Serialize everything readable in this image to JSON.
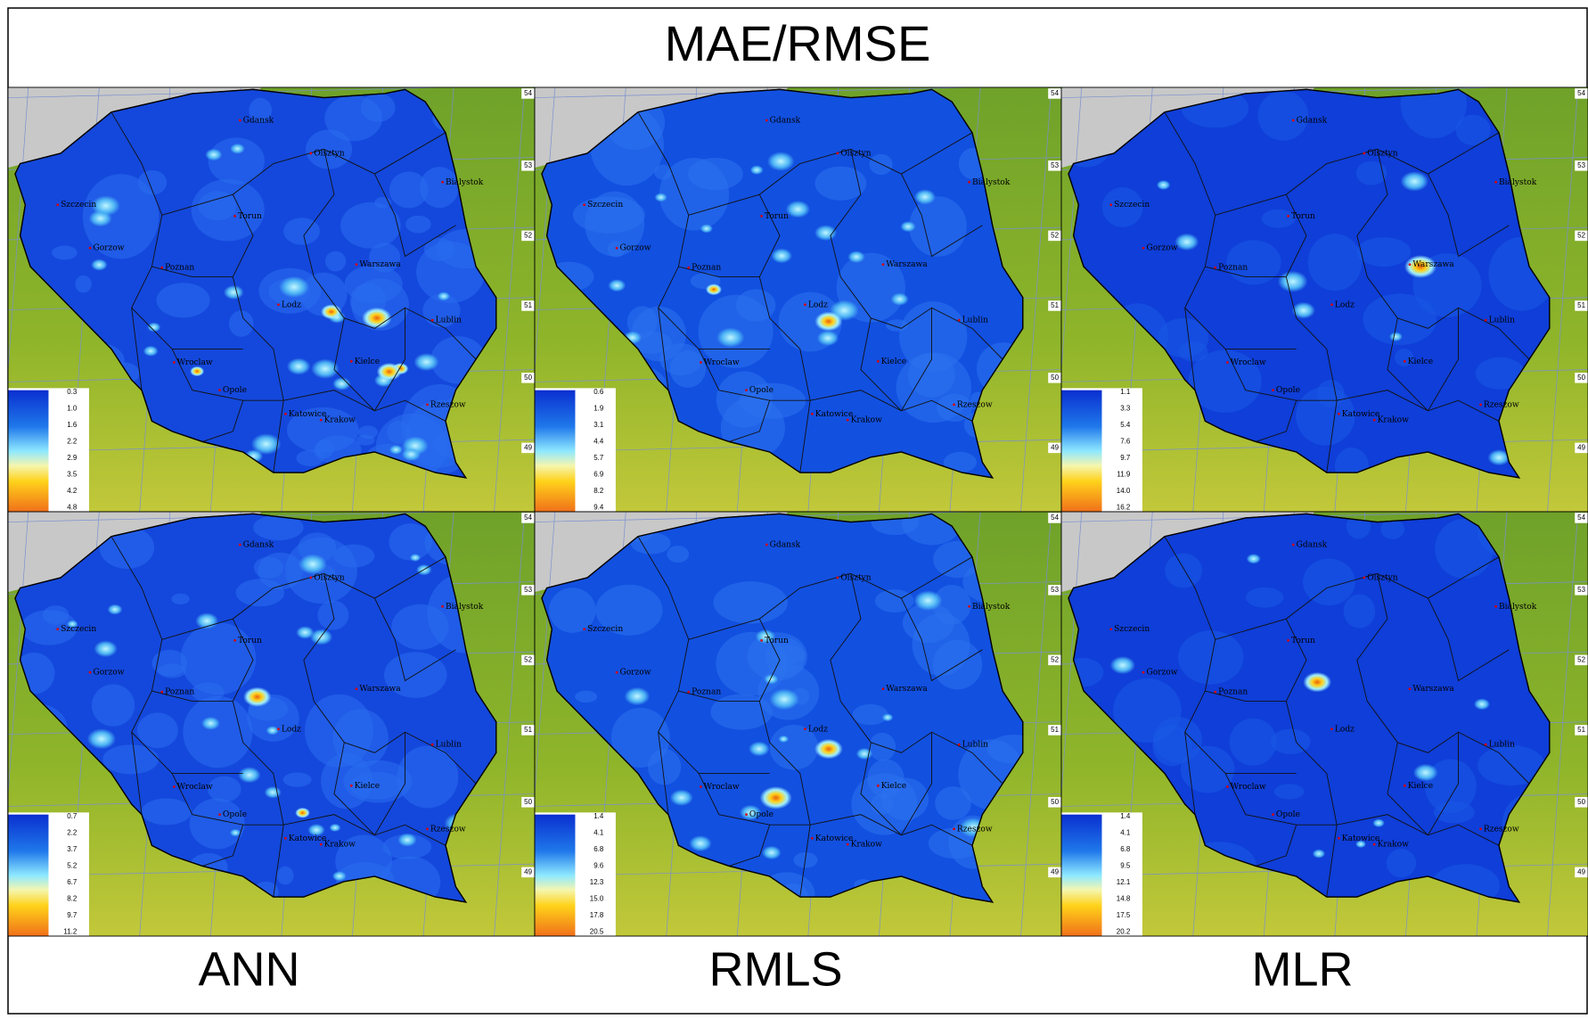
{
  "title": "MAE/RMSE",
  "columns": [
    {
      "label": "ANN"
    },
    {
      "label": "RMLS"
    },
    {
      "label": "MLR"
    }
  ],
  "panels": [
    [
      {
        "legend": [
          "0.3",
          "1.0",
          "1.6",
          "2.2",
          "2.9",
          "3.5",
          "4.2",
          "4.8"
        ]
      },
      {
        "legend": [
          "0.6",
          "1.9",
          "3.1",
          "4.4",
          "5.7",
          "6.9",
          "8.2",
          "9.4"
        ]
      },
      {
        "legend": [
          "1.1",
          "3.3",
          "5.4",
          "7.6",
          "9.7",
          "11.9",
          "14.0",
          "16.2"
        ]
      }
    ],
    [
      {
        "legend": [
          "0.7",
          "2.2",
          "3.7",
          "5.2",
          "6.7",
          "8.2",
          "9.7",
          "11.2"
        ]
      },
      {
        "legend": [
          "1.4",
          "4.1",
          "6.8",
          "9.6",
          "12.3",
          "15.0",
          "17.8",
          "20.5"
        ]
      },
      {
        "legend": [
          "1.4",
          "4.1",
          "6.8",
          "9.5",
          "12.1",
          "14.8",
          "17.5",
          "20.2"
        ]
      }
    ]
  ],
  "cities": [
    "Gdansk",
    "Olsztyn",
    "Bialystok",
    "Szczecin",
    "Torun",
    "Gorzow",
    "Poznan",
    "Warszawa",
    "Lodz",
    "Lublin",
    "Wroclaw",
    "Opole",
    "Kielce",
    "Katowice",
    "Krakow",
    "Rzeszow"
  ],
  "latitudes": [
    "54",
    "53",
    "52",
    "51",
    "50",
    "49"
  ]
}
